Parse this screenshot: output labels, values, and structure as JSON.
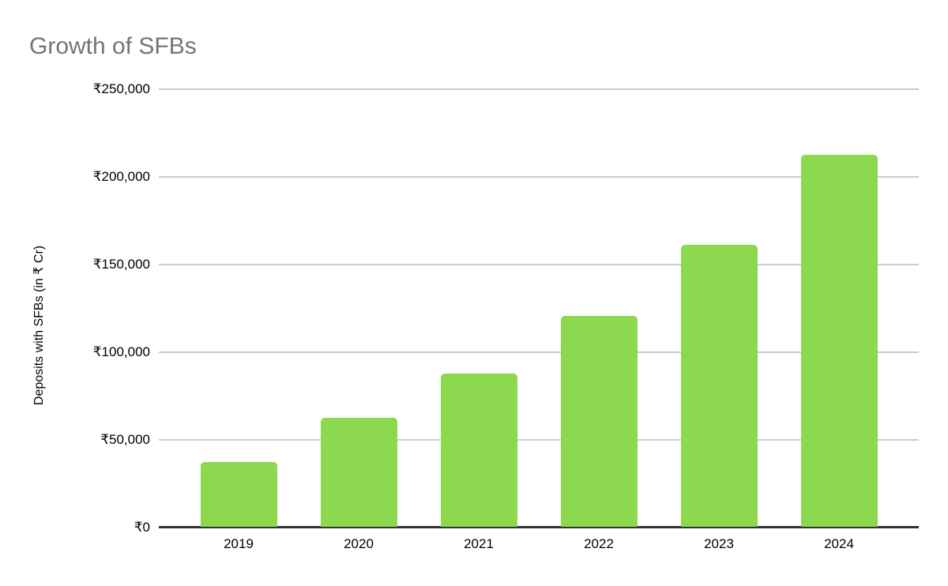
{
  "chart_data": {
    "type": "bar",
    "title": "Growth of SFBs",
    "categories": [
      "2019",
      "2020",
      "2021",
      "2022",
      "2023",
      "2024"
    ],
    "values": [
      37000,
      62000,
      87500,
      120500,
      161000,
      212000
    ],
    "xlabel": "",
    "ylabel": "Deposits with SFBs (in ₹ Cr)",
    "ylim": [
      0,
      250000
    ],
    "ytick_interval": 50000,
    "yticks": [
      {
        "value": 0,
        "label": "₹0"
      },
      {
        "value": 50000,
        "label": "₹50,000"
      },
      {
        "value": 100000,
        "label": "₹100,000"
      },
      {
        "value": 150000,
        "label": "₹150,000"
      },
      {
        "value": 200000,
        "label": "₹200,000"
      },
      {
        "value": 250000,
        "label": "₹250,000"
      }
    ],
    "grid": "horizontal-only",
    "legend": "none",
    "currency_symbol": "₹"
  },
  "colors": {
    "bar": "#8cd84f",
    "gridline": "#cccccc",
    "axis_line": "#333333",
    "title_text": "#757575",
    "tick_text": "#000000",
    "background": "#ffffff"
  }
}
